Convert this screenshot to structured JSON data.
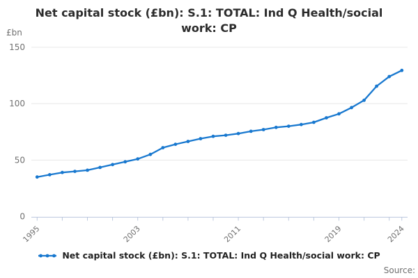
{
  "title": "Net capital stock (£bn): S.1: TOTAL: Ind Q Health/social work: CP",
  "y_axis": {
    "unit_label": "£bn",
    "ticks": [
      0,
      50,
      100,
      150
    ]
  },
  "x_axis": {
    "start_year": 1995,
    "end_year": 2024,
    "minor_tick_step": 2,
    "labeled_ticks": [
      "1995",
      "2003",
      "2011",
      "2019",
      "2024"
    ]
  },
  "legend": {
    "label": "Net capital stock (£bn): S.1: TOTAL: Ind Q Health/social work: CP"
  },
  "source_label": "Source:",
  "colors": {
    "line": "#1878cf",
    "grid": "#e8e8e8",
    "axis": "#bcc8de",
    "tick_text": "#6f6f6f",
    "title_text": "#2b2b2b"
  },
  "chart_data": {
    "type": "line",
    "title": "Net capital stock (£bn): S.1: TOTAL: Ind Q Health/social work: CP",
    "xlabel": "",
    "ylabel": "£bn",
    "ylim": [
      0,
      150
    ],
    "grid": "horizontal",
    "legend_position": "bottom",
    "markers": true,
    "x": [
      1995,
      1996,
      1997,
      1998,
      1999,
      2000,
      2001,
      2002,
      2003,
      2004,
      2005,
      2006,
      2007,
      2008,
      2009,
      2010,
      2011,
      2012,
      2013,
      2014,
      2015,
      2016,
      2017,
      2018,
      2019,
      2020,
      2021,
      2022,
      2023,
      2024
    ],
    "values": [
      35,
      37,
      39,
      40,
      41,
      43.5,
      46,
      48.5,
      51,
      55,
      61,
      64,
      66.5,
      69,
      71,
      72,
      73.5,
      75.5,
      77,
      79,
      80,
      81.5,
      83.5,
      87.5,
      91,
      96.5,
      103,
      115.5,
      124,
      129.5
    ]
  }
}
